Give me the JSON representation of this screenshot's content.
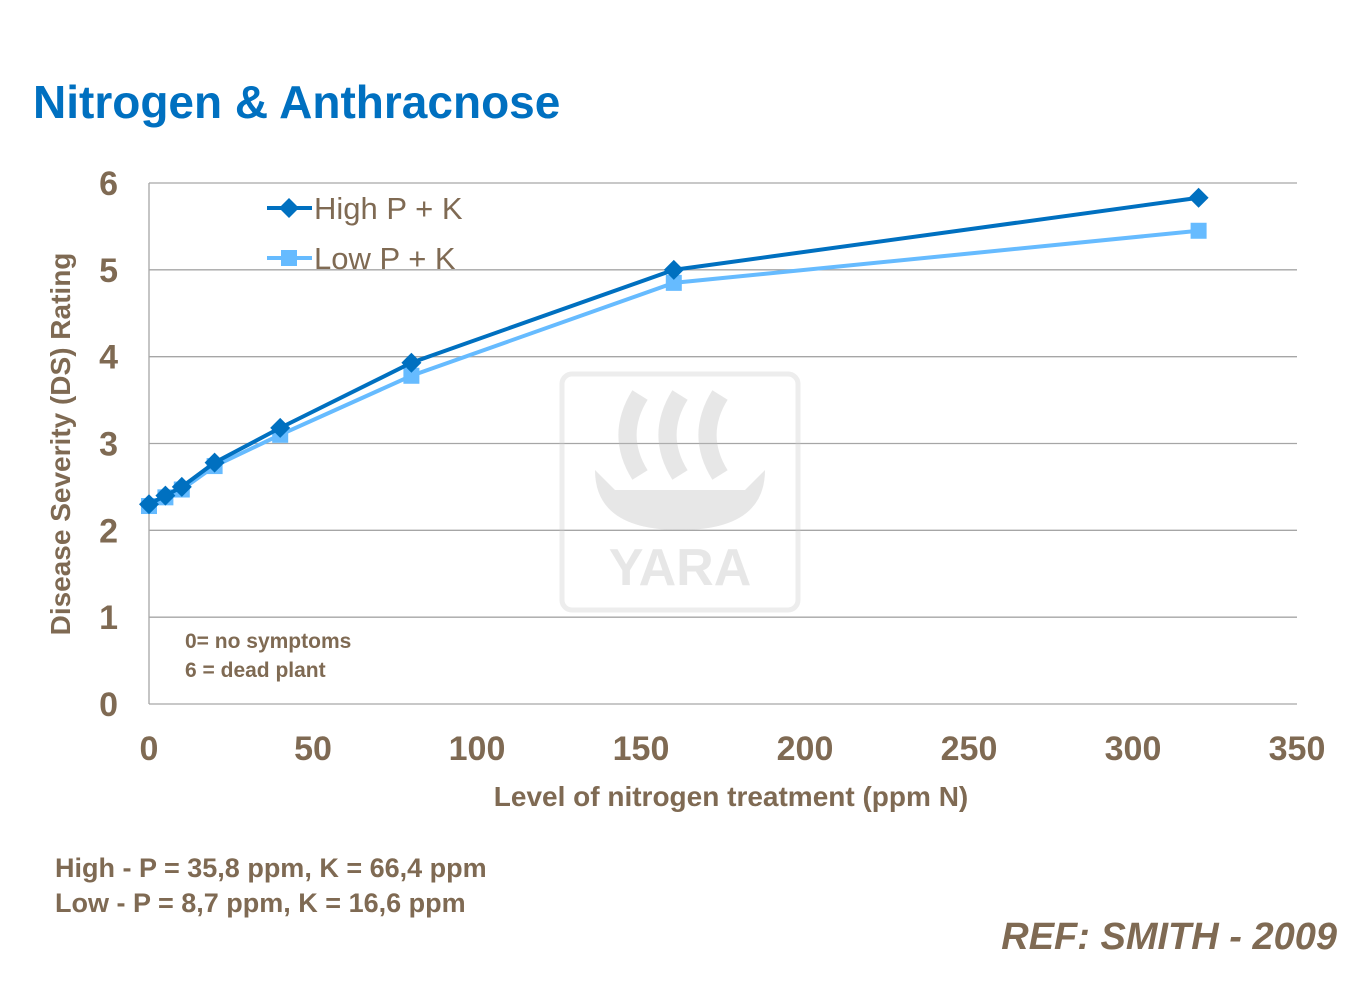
{
  "title": "Nitrogen & Anthracnose",
  "chart_data": {
    "type": "line",
    "xlabel": "Level of nitrogen treatment (ppm N)",
    "ylabel": "Disease Severity (DS) Rating",
    "xlim": [
      0,
      350
    ],
    "ylim": [
      0,
      6
    ],
    "xticks": [
      0,
      50,
      100,
      150,
      200,
      250,
      300,
      350
    ],
    "yticks": [
      0,
      1,
      2,
      3,
      4,
      5,
      6
    ],
    "grid": "horizontal",
    "legend": "top-left",
    "x": [
      0,
      5,
      10,
      20,
      40,
      80,
      160,
      320
    ],
    "series": [
      {
        "name": "High P + K",
        "marker": "diamond",
        "color": "#0070C0",
        "values": [
          2.3,
          2.4,
          2.5,
          2.78,
          3.18,
          3.93,
          5.0,
          5.83
        ]
      },
      {
        "name": "Low P + K",
        "marker": "square",
        "color": "#66BBFF",
        "values": [
          2.28,
          2.38,
          2.47,
          2.74,
          3.1,
          3.78,
          4.85,
          5.45
        ]
      }
    ],
    "annotations": [
      "0= no symptoms",
      "6 = dead plant"
    ]
  },
  "watermark": "YARA",
  "footnotes": [
    "High - P = 35,8 ppm,  K = 66,4 ppm",
    "Low - P = 8,7 ppm, K = 16,6 ppm"
  ],
  "reference": "REF:  SMITH - 2009"
}
